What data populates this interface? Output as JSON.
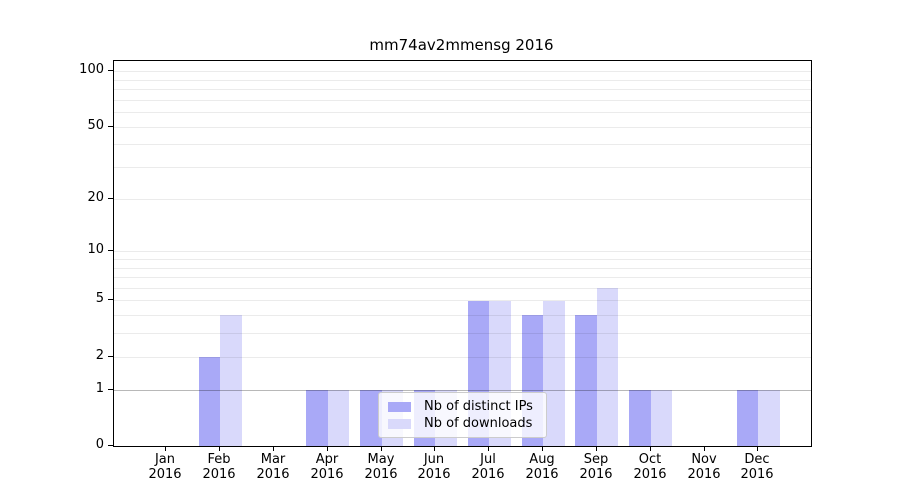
{
  "chart_data": {
    "type": "bar",
    "title": "mm74av2mmensg 2016",
    "categories": [
      "Jan",
      "Feb",
      "Mar",
      "Apr",
      "May",
      "Jun",
      "Jul",
      "Aug",
      "Sep",
      "Oct",
      "Nov",
      "Dec"
    ],
    "category_year": "2016",
    "series": [
      {
        "name": "Nb of distinct IPs",
        "color": "#a9a9f7",
        "values": [
          0,
          2,
          0,
          1,
          1,
          1,
          5,
          4,
          4,
          1,
          0,
          1
        ]
      },
      {
        "name": "Nb of downloads",
        "color": "#d9d9fb",
        "values": [
          0,
          4,
          0,
          1,
          1,
          1,
          5,
          5,
          6,
          1,
          0,
          1
        ]
      }
    ],
    "xlabel": "",
    "ylabel": "",
    "yscale": "log1p",
    "ylim": [
      0,
      113
    ],
    "y_tick_values": [
      0,
      1,
      2,
      5,
      10,
      20,
      50,
      100
    ],
    "gridline_values": [
      1,
      2,
      3,
      4,
      5,
      6,
      7,
      8,
      9,
      10,
      20,
      30,
      40,
      50,
      60,
      70,
      80,
      90,
      100
    ],
    "grid_color_minor": "rgba(0,0,0,0.08)",
    "grid_color_unit": "rgba(0,0,0,0.28)",
    "legend_position": "lower center-right inside plot",
    "grid": true
  }
}
